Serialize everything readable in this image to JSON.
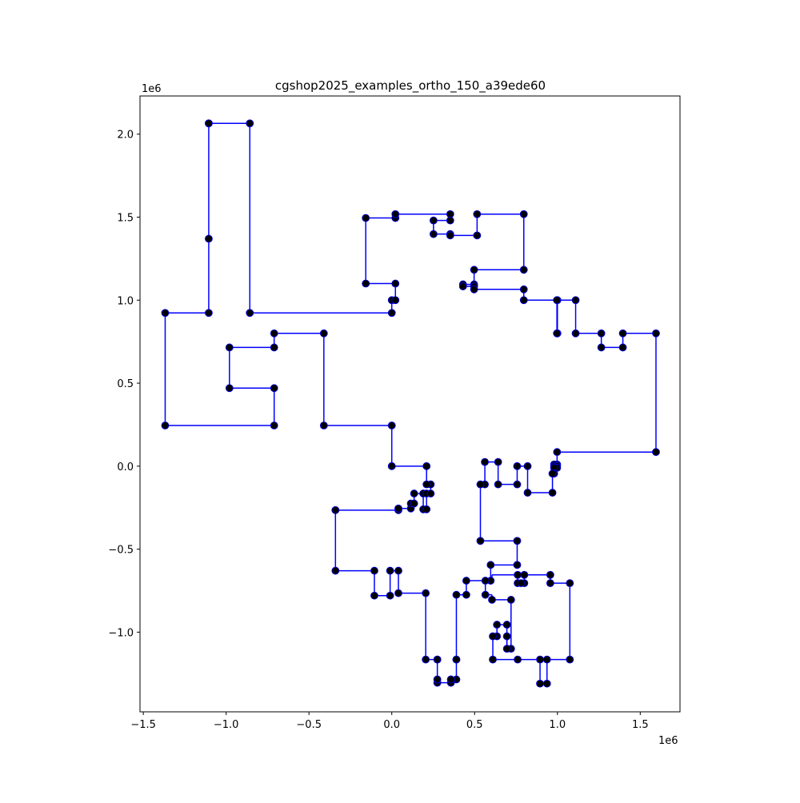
{
  "chart_data": {
    "type": "line",
    "title": "cgshop2025_examples_ortho_150_a39ede60",
    "xlabel": "",
    "ylabel": "",
    "x_offset_label": "1e6",
    "y_offset_label": "1e6",
    "xlim": [
      -1.52,
      1.74
    ],
    "ylim": [
      -1.48,
      2.23
    ],
    "x_ticks": [
      -1.5,
      -1.0,
      -0.5,
      0.0,
      0.5,
      1.0,
      1.5
    ],
    "x_tick_labels": [
      "−1.5",
      "−1.0",
      "−0.5",
      "0.0",
      "0.5",
      "1.0",
      "1.5"
    ],
    "y_ticks": [
      -1.0,
      -0.5,
      0.0,
      0.5,
      1.0,
      1.5,
      2.0
    ],
    "y_tick_labels": [
      "−1.0",
      "−0.5",
      "0.0",
      "0.5",
      "1.0",
      "1.5",
      "2.0"
    ],
    "grid": false,
    "line_color": "#0000ff",
    "marker_color": "#000000",
    "points": [
      [
        -1.105,
        2.065
      ],
      [
        -0.857,
        2.065
      ],
      [
        -0.857,
        0.923
      ],
      [
        0.0,
        0.923
      ],
      [
        0.0,
        1.0
      ],
      [
        0.022,
        1.0
      ],
      [
        0.022,
        1.1
      ],
      [
        -0.157,
        1.1
      ],
      [
        -0.157,
        1.495
      ],
      [
        0.022,
        1.495
      ],
      [
        0.022,
        1.518
      ],
      [
        0.353,
        1.518
      ],
      [
        0.353,
        1.48
      ],
      [
        0.252,
        1.48
      ],
      [
        0.252,
        1.398
      ],
      [
        0.353,
        1.398
      ],
      [
        0.353,
        1.39
      ],
      [
        0.515,
        1.39
      ],
      [
        0.515,
        1.518
      ],
      [
        0.797,
        1.518
      ],
      [
        0.797,
        1.183
      ],
      [
        0.497,
        1.183
      ],
      [
        0.497,
        1.095
      ],
      [
        0.43,
        1.095
      ],
      [
        0.43,
        1.083
      ],
      [
        0.497,
        1.083
      ],
      [
        0.497,
        1.065
      ],
      [
        0.797,
        1.065
      ],
      [
        0.797,
        1.0
      ],
      [
        1.0,
        1.0
      ],
      [
        1.0,
        0.8
      ],
      [
        0.997,
        0.8
      ],
      [
        0.997,
        1.0
      ],
      [
        1.11,
        1.0
      ],
      [
        1.11,
        0.8
      ],
      [
        1.265,
        0.8
      ],
      [
        1.265,
        0.715
      ],
      [
        1.395,
        0.715
      ],
      [
        1.395,
        0.8
      ],
      [
        1.595,
        0.8
      ],
      [
        1.595,
        0.085
      ],
      [
        0.998,
        0.085
      ],
      [
        0.998,
        0.01
      ],
      [
        0.98,
        0.01
      ],
      [
        0.98,
        0.0
      ],
      [
        0.998,
        0.0
      ],
      [
        0.998,
        -0.01
      ],
      [
        0.98,
        -0.01
      ],
      [
        0.98,
        -0.045
      ],
      [
        0.97,
        -0.045
      ],
      [
        0.97,
        -0.16
      ],
      [
        0.82,
        -0.16
      ],
      [
        0.82,
        0.0
      ],
      [
        0.757,
        0.0
      ],
      [
        0.757,
        -0.11
      ],
      [
        0.642,
        -0.11
      ],
      [
        0.642,
        0.025
      ],
      [
        0.562,
        0.025
      ],
      [
        0.562,
        -0.11
      ],
      [
        0.535,
        -0.11
      ],
      [
        0.535,
        -0.45
      ],
      [
        0.757,
        -0.45
      ],
      [
        0.757,
        -0.595
      ],
      [
        0.597,
        -0.595
      ],
      [
        0.597,
        -0.69
      ],
      [
        0.45,
        -0.69
      ],
      [
        0.45,
        -0.775
      ],
      [
        0.39,
        -0.775
      ],
      [
        0.39,
        -1.165
      ],
      [
        0.39,
        -1.285
      ],
      [
        0.357,
        -1.285
      ],
      [
        0.357,
        -1.305
      ],
      [
        0.275,
        -1.305
      ],
      [
        0.275,
        -1.285
      ],
      [
        0.275,
        -1.165
      ],
      [
        0.205,
        -1.165
      ],
      [
        0.205,
        -0.765
      ],
      [
        0.04,
        -0.765
      ],
      [
        0.04,
        -0.63
      ],
      [
        -0.01,
        -0.63
      ],
      [
        -0.01,
        -0.78
      ],
      [
        -0.105,
        -0.78
      ],
      [
        -0.105,
        -0.63
      ],
      [
        -0.34,
        -0.63
      ],
      [
        -0.34,
        -0.265
      ],
      [
        0.04,
        -0.265
      ],
      [
        0.04,
        -0.255
      ],
      [
        0.115,
        -0.255
      ],
      [
        0.115,
        -0.225
      ],
      [
        0.135,
        -0.225
      ],
      [
        0.135,
        -0.165
      ],
      [
        0.19,
        -0.165
      ],
      [
        0.19,
        -0.26
      ],
      [
        0.21,
        -0.26
      ],
      [
        0.21,
        -0.165
      ],
      [
        0.235,
        -0.165
      ],
      [
        0.235,
        -0.11
      ],
      [
        0.21,
        -0.11
      ],
      [
        0.21,
        0.0
      ],
      [
        0.0,
        0.0
      ],
      [
        0.0,
        0.245
      ],
      [
        -0.41,
        0.245
      ],
      [
        -0.41,
        0.8
      ],
      [
        -0.71,
        0.8
      ],
      [
        -0.71,
        0.715
      ],
      [
        -0.98,
        0.715
      ],
      [
        -0.98,
        0.47
      ],
      [
        -0.71,
        0.47
      ],
      [
        -0.71,
        0.245
      ],
      [
        -1.368,
        0.245
      ],
      [
        -1.368,
        0.923
      ],
      [
        -1.105,
        0.923
      ],
      [
        -1.105,
        1.37
      ],
      [
        -1.105,
        2.065
      ]
    ],
    "extra_segments": [
      [
        [
          0.565,
          -0.69
        ],
        [
          0.565,
          -0.775
        ]
      ],
      [
        [
          0.565,
          -0.775
        ],
        [
          0.605,
          -0.775
        ]
      ],
      [
        [
          0.605,
          -0.775
        ],
        [
          0.605,
          -0.805
        ]
      ],
      [
        [
          0.605,
          -0.805
        ],
        [
          0.72,
          -0.805
        ]
      ],
      [
        [
          0.72,
          -0.805
        ],
        [
          0.72,
          -1.1
        ]
      ],
      [
        [
          0.72,
          -1.1
        ],
        [
          0.695,
          -1.1
        ]
      ],
      [
        [
          0.695,
          -1.1
        ],
        [
          0.695,
          -0.955
        ]
      ],
      [
        [
          0.695,
          -0.955
        ],
        [
          0.635,
          -0.955
        ]
      ],
      [
        [
          0.635,
          -0.955
        ],
        [
          0.635,
          -1.025
        ]
      ],
      [
        [
          0.635,
          -1.025
        ],
        [
          0.61,
          -1.025
        ]
      ],
      [
        [
          0.61,
          -1.025
        ],
        [
          0.61,
          -1.165
        ]
      ],
      [
        [
          0.61,
          -1.165
        ],
        [
          0.76,
          -1.165
        ]
      ],
      [
        [
          0.76,
          -1.165
        ],
        [
          0.895,
          -1.165
        ]
      ],
      [
        [
          0.895,
          -1.165
        ],
        [
          0.895,
          -1.31
        ]
      ],
      [
        [
          0.937,
          -1.31
        ],
        [
          0.937,
          -1.165
        ]
      ],
      [
        [
          0.937,
          -1.165
        ],
        [
          1.075,
          -1.165
        ]
      ],
      [
        [
          1.075,
          -1.165
        ],
        [
          1.075,
          -0.705
        ]
      ],
      [
        [
          1.075,
          -0.705
        ],
        [
          0.957,
          -0.705
        ]
      ],
      [
        [
          0.957,
          -0.705
        ],
        [
          0.957,
          -0.655
        ]
      ],
      [
        [
          0.957,
          -0.655
        ],
        [
          0.8,
          -0.655
        ]
      ],
      [
        [
          0.8,
          -0.655
        ],
        [
          0.8,
          -0.705
        ]
      ],
      [
        [
          0.8,
          -0.705
        ],
        [
          0.76,
          -0.705
        ]
      ],
      [
        [
          0.76,
          -0.705
        ],
        [
          0.76,
          -0.655
        ]
      ],
      [
        [
          0.76,
          -0.655
        ],
        [
          0.605,
          -0.655
        ]
      ],
      [
        [
          0.605,
          -0.655
        ],
        [
          0.605,
          -0.69
        ]
      ],
      [
        [
          0.605,
          -0.69
        ],
        [
          0.597,
          -0.69
        ]
      ],
      [
        [
          0.695,
          -1.025
        ],
        [
          0.695,
          -1.1
        ]
      ]
    ],
    "extra_points": [
      [
        0.565,
        -0.69
      ],
      [
        0.565,
        -0.775
      ],
      [
        0.605,
        -0.805
      ],
      [
        0.72,
        -0.805
      ],
      [
        0.72,
        -1.1
      ],
      [
        0.695,
        -1.1
      ],
      [
        0.695,
        -0.955
      ],
      [
        0.635,
        -0.955
      ],
      [
        0.635,
        -1.025
      ],
      [
        0.61,
        -1.025
      ],
      [
        0.61,
        -1.165
      ],
      [
        0.76,
        -1.165
      ],
      [
        0.895,
        -1.165
      ],
      [
        0.895,
        -1.31
      ],
      [
        0.937,
        -1.31
      ],
      [
        0.937,
        -1.165
      ],
      [
        1.075,
        -1.165
      ],
      [
        1.075,
        -0.705
      ],
      [
        0.957,
        -0.705
      ],
      [
        0.957,
        -0.655
      ],
      [
        0.8,
        -0.655
      ],
      [
        0.8,
        -0.705
      ],
      [
        0.76,
        -0.705
      ],
      [
        0.76,
        -0.655
      ],
      [
        0.78,
        -0.705
      ],
      [
        0.695,
        -1.025
      ],
      [
        0.275,
        -1.285
      ],
      [
        0.357,
        -1.285
      ],
      [
        0.39,
        -1.165
      ],
      [
        0.275,
        -1.165
      ]
    ]
  }
}
